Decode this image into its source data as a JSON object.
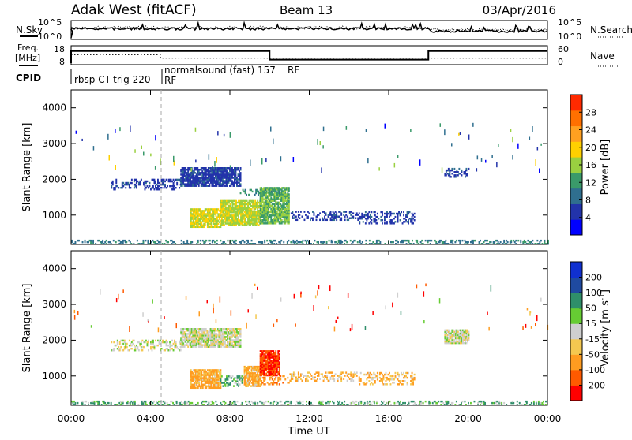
{
  "header": {
    "station": "Adak West (fitACF)",
    "beam": "Beam 13",
    "date": "03/Apr/2016"
  },
  "noise_panel": {
    "left_label": "N.Sky",
    "right_label": "N.Search",
    "left_ticks": [
      "10^5",
      "10^0"
    ],
    "right_ticks": [
      "10^5",
      "10^0"
    ]
  },
  "freq_panel": {
    "left_label": "Freq.",
    "left_unit": "[MHz]",
    "right_label": "Nave",
    "left_ticks": [
      "18",
      "8"
    ],
    "right_ticks": [
      "60",
      "0"
    ],
    "freq_steps": [
      {
        "start_h": 0.0,
        "end_h": 4.5,
        "freq": 16.0
      },
      {
        "start_h": 4.5,
        "end_h": 10.0,
        "freq": 16.0
      },
      {
        "start_h": 10.0,
        "end_h": 18.0,
        "freq": 11.5
      },
      {
        "start_h": 18.0,
        "end_h": 24.0,
        "freq": 16.0
      }
    ],
    "nave_steps": [
      {
        "start_h": 0.0,
        "end_h": 4.5,
        "nave": 32
      },
      {
        "start_h": 4.5,
        "end_h": 24.0,
        "nave": 21
      }
    ]
  },
  "cpid": {
    "label": "CPID",
    "program1": "rbsp CT-trig 220",
    "program2": "normalsound (fast) 157",
    "rf1": "RF",
    "rf2": "RF"
  },
  "x_axis": {
    "title": "Time UT",
    "ticks": [
      "00:00",
      "04:00",
      "08:00",
      "12:00",
      "16:00",
      "20:00",
      "00:00"
    ]
  },
  "colors": {
    "power": [
      "#0000ff",
      "#2233aa",
      "#2f6f8f",
      "#3a9a6a",
      "#9ad040",
      "#ffd000",
      "#ffa020",
      "#ff7000",
      "#ff2a00"
    ],
    "velocity": [
      "#ff0000",
      "#ff5a00",
      "#ff9c20",
      "#f4c850",
      "#cfcfcf",
      "#66cc33",
      "#2f8f6a",
      "#1f4aa0",
      "#1030d0"
    ]
  },
  "chart_data": [
    {
      "type": "heatmap",
      "title": "",
      "xlabel": "Time UT",
      "ylabel": "Slant Range [km]",
      "xlim": [
        0,
        24
      ],
      "ylim": [
        180,
        4500
      ],
      "yticks": [
        "1000",
        "2000",
        "3000",
        "4000"
      ],
      "colorbar": {
        "label": "Power [dB]",
        "range": [
          0,
          32
        ],
        "ticks": [
          "4",
          "8",
          "12",
          "16",
          "20",
          "24",
          "28"
        ]
      },
      "regions": [
        {
          "start_h": 6.0,
          "end_h": 7.5,
          "r0": 650,
          "r1": 1150,
          "value": 18
        },
        {
          "start_h": 7.5,
          "end_h": 9.5,
          "r0": 700,
          "r1": 1400,
          "value": 17
        },
        {
          "start_h": 9.5,
          "end_h": 11.0,
          "r0": 750,
          "r1": 1750,
          "value": 14
        },
        {
          "start_h": 8.5,
          "end_h": 10.5,
          "r0": 1550,
          "r1": 1700,
          "value": 12
        },
        {
          "start_h": 11.0,
          "end_h": 14.5,
          "r0": 850,
          "r1": 1100,
          "value": 6
        },
        {
          "start_h": 14.5,
          "end_h": 17.3,
          "r0": 750,
          "r1": 1100,
          "value": 6
        },
        {
          "start_h": 2.0,
          "end_h": 5.5,
          "r0": 1700,
          "r1": 2000,
          "value": 6
        },
        {
          "start_h": 5.5,
          "end_h": 8.5,
          "r0": 1800,
          "r1": 2300,
          "value": 6
        },
        {
          "start_h": 18.8,
          "end_h": 20.0,
          "r0": 2050,
          "r1": 2300,
          "value": 6
        },
        {
          "start_h": 0.0,
          "end_h": 24.0,
          "r0": 180,
          "r1": 300,
          "value": 10
        }
      ]
    },
    {
      "type": "heatmap",
      "title": "",
      "xlabel": "Time UT",
      "ylabel": "Slant Range [km]",
      "xlim": [
        0,
        24
      ],
      "ylim": [
        180,
        4500
      ],
      "yticks": [
        "1000",
        "2000",
        "3000",
        "4000"
      ],
      "colorbar": {
        "label": "Velocity [m s^-1]",
        "range": [
          -250,
          250
        ],
        "ticks": [
          "-200",
          "-100",
          "-50",
          "-15",
          "15",
          "50",
          "100",
          "200"
        ]
      },
      "regions": [
        {
          "start_h": 6.0,
          "end_h": 7.5,
          "r0": 650,
          "r1": 1150,
          "value": -40
        },
        {
          "start_h": 7.5,
          "end_h": 8.7,
          "r0": 700,
          "r1": 1000,
          "value": 30
        },
        {
          "start_h": 8.7,
          "end_h": 9.5,
          "r0": 700,
          "r1": 1250,
          "value": -40
        },
        {
          "start_h": 9.5,
          "end_h": 10.5,
          "r0": 1000,
          "r1": 1700,
          "value": -150
        },
        {
          "start_h": 9.5,
          "end_h": 11.0,
          "r0": 750,
          "r1": 1000,
          "value": -60
        },
        {
          "start_h": 11.0,
          "end_h": 14.5,
          "r0": 850,
          "r1": 1100,
          "value": -30
        },
        {
          "start_h": 14.5,
          "end_h": 17.3,
          "r0": 750,
          "r1": 1100,
          "value": -30
        },
        {
          "start_h": 2.0,
          "end_h": 5.5,
          "r0": 1700,
          "r1": 2000,
          "value": 0
        },
        {
          "start_h": 5.5,
          "end_h": 8.5,
          "r0": 1800,
          "r1": 2300,
          "value": 0
        },
        {
          "start_h": 18.8,
          "end_h": 20.0,
          "r0": 1900,
          "r1": 2300,
          "value": 0
        },
        {
          "start_h": 0.0,
          "end_h": 24.0,
          "r0": 180,
          "r1": 300,
          "value": 30
        }
      ]
    }
  ]
}
